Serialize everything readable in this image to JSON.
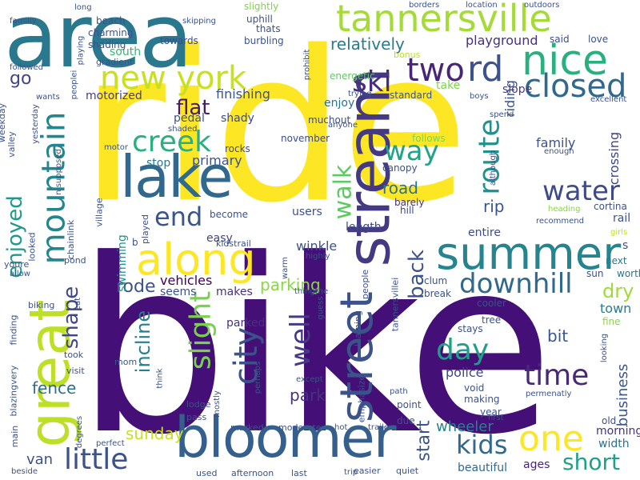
{
  "words": [
    {
      "text": "ride",
      "color": "#fde725"
    },
    {
      "text": "bike",
      "color": "#440f76"
    },
    {
      "text": "area",
      "color": "#2a788e"
    },
    {
      "text": "bloomer",
      "color": "#355f8d"
    },
    {
      "text": "stream",
      "color": "#443a83"
    },
    {
      "text": "lake",
      "color": "#31688e"
    },
    {
      "text": "tannersville",
      "color": "#a5db36"
    },
    {
      "text": "summer",
      "color": "#25848e"
    },
    {
      "text": "street",
      "color": "#3b528b"
    },
    {
      "text": "mountain",
      "color": "#25858e"
    },
    {
      "text": "great",
      "color": "#bddf26"
    },
    {
      "text": "along",
      "color": "#fde725"
    },
    {
      "text": "nice",
      "color": "#2ab07f"
    },
    {
      "text": "new york",
      "color": "#c8e020"
    },
    {
      "text": "two",
      "color": "#482576"
    },
    {
      "text": "closed",
      "color": "#31688e"
    },
    {
      "text": "route",
      "color": "#21918c"
    },
    {
      "text": "rd",
      "color": "#3b528b"
    },
    {
      "text": "ski",
      "color": "#472d7b"
    },
    {
      "text": "walk",
      "color": "#5ec962"
    },
    {
      "text": "way",
      "color": "#20a486"
    },
    {
      "text": "creek",
      "color": "#2ab07f"
    },
    {
      "text": "water",
      "color": "#3e4a89"
    },
    {
      "text": "end",
      "color": "#39568c"
    },
    {
      "text": "city",
      "color": "#3b528b"
    },
    {
      "text": "slight",
      "color": "#7ad151"
    },
    {
      "text": "well",
      "color": "#443b84"
    },
    {
      "text": "day",
      "color": "#1f9e89"
    },
    {
      "text": "downhill",
      "color": "#31688e"
    },
    {
      "text": "time",
      "color": "#482878"
    },
    {
      "text": "one",
      "color": "#fde725"
    },
    {
      "text": "kids",
      "color": "#31688e"
    },
    {
      "text": "little",
      "color": "#3b528b"
    },
    {
      "text": "short",
      "color": "#1fa188"
    },
    {
      "text": "enjoyed",
      "color": "#1f9a8a"
    },
    {
      "text": "shape",
      "color": "#3f4788"
    },
    {
      "text": "back",
      "color": "#3b528b"
    },
    {
      "text": "parking",
      "color": "#8bd646"
    },
    {
      "text": "relatively",
      "color": "#287c8e"
    },
    {
      "text": "road",
      "color": "#2c728e"
    },
    {
      "text": "rip",
      "color": "#39568c"
    },
    {
      "text": "finishing",
      "color": "#3b528b"
    },
    {
      "text": "flat",
      "color": "#48186a"
    },
    {
      "text": "rode",
      "color": "#3b528b"
    },
    {
      "text": "incline",
      "color": "#277f8e"
    },
    {
      "text": "fence",
      "color": "#2e6f8e"
    },
    {
      "text": "sunday",
      "color": "#c8e020"
    },
    {
      "text": "park",
      "color": "#46327e"
    },
    {
      "text": "business",
      "color": "#39568c"
    },
    {
      "text": "van",
      "color": "#3b528b"
    },
    {
      "text": "start",
      "color": "#39568c"
    },
    {
      "text": "wheeler",
      "color": "#25848e"
    },
    {
      "text": "police",
      "color": "#414487"
    },
    {
      "text": "bit",
      "color": "#39568c"
    },
    {
      "text": "dry",
      "color": "#a0da39"
    },
    {
      "text": "go",
      "color": "#414487"
    },
    {
      "text": "playground",
      "color": "#46327e"
    },
    {
      "text": "primary",
      "color": "#3b528b"
    },
    {
      "text": "vehicles",
      "color": "#440154"
    },
    {
      "text": "winkle",
      "color": "#3b528b"
    },
    {
      "text": "swimming",
      "color": "#21918c"
    },
    {
      "text": "entire",
      "color": "#3e4a89"
    },
    {
      "text": "crossing",
      "color": "#414487"
    },
    {
      "text": "family",
      "color": "#3b528b"
    },
    {
      "text": "town",
      "color": "#287c8e"
    },
    {
      "text": "riding",
      "color": "#3b528b"
    },
    {
      "text": "beautiful",
      "color": "#31688e"
    },
    {
      "text": "ages",
      "color": "#482576"
    },
    {
      "text": "morning",
      "color": "#46327e"
    },
    {
      "text": "width",
      "color": "#2c728e"
    },
    {
      "text": "enjoy",
      "color": "#2c728e"
    },
    {
      "text": "take",
      "color": "#7fd34e"
    },
    {
      "text": "slope",
      "color": "#443a83"
    },
    {
      "text": "motorized",
      "color": "#443b84"
    },
    {
      "text": "south",
      "color": "#35b779"
    },
    {
      "text": "users",
      "color": "#3b528b"
    },
    {
      "text": "length",
      "color": "#3e4a89"
    },
    {
      "text": "stop",
      "color": "#2a788e"
    },
    {
      "text": "easy",
      "color": "#414487"
    },
    {
      "text": "makes",
      "color": "#46327e"
    },
    {
      "text": "seems",
      "color": "#3b528b"
    },
    {
      "text": "parked",
      "color": "#46327e"
    },
    {
      "text": "pedal",
      "color": "#3b528b"
    },
    {
      "text": "shady",
      "color": "#3e4a89"
    },
    {
      "text": "rocks",
      "color": "#3e4a89"
    },
    {
      "text": "become",
      "color": "#3b528b"
    },
    {
      "text": "november",
      "color": "#3e4a89"
    },
    {
      "text": "muchout",
      "color": "#3e4a89"
    },
    {
      "text": "canopy",
      "color": "#3b528b"
    },
    {
      "text": "barely",
      "color": "#46327e"
    },
    {
      "text": "hill",
      "color": "#3e4a89"
    },
    {
      "text": "follows",
      "color": "#7fd34e"
    },
    {
      "text": "energetic",
      "color": "#5ec962"
    },
    {
      "text": "standard",
      "color": "#3b528b"
    },
    {
      "text": "beach",
      "color": "#3b528b"
    },
    {
      "text": "charming",
      "color": "#3b528b"
    },
    {
      "text": "shading",
      "color": "#3b528b"
    },
    {
      "text": "towards",
      "color": "#3e4a89"
    },
    {
      "text": "uphill",
      "color": "#3b528b"
    },
    {
      "text": "thats",
      "color": "#3b528b"
    },
    {
      "text": "burbling",
      "color": "#3b528b"
    },
    {
      "text": "slightly",
      "color": "#7fd34e"
    },
    {
      "text": "said",
      "color": "#3e4a89"
    },
    {
      "text": "love",
      "color": "#3b528b"
    },
    {
      "text": "bonus",
      "color": "#bddf26"
    },
    {
      "text": "excellent",
      "color": "#3b528b"
    },
    {
      "text": "cooler",
      "color": "#3b528b"
    },
    {
      "text": "stays",
      "color": "#3b528b"
    },
    {
      "text": "tree",
      "color": "#3b528b"
    },
    {
      "text": "fine",
      "color": "#8bd646"
    },
    {
      "text": "next",
      "color": "#2a788e"
    },
    {
      "text": "worth",
      "color": "#2c728e"
    },
    {
      "text": "sun",
      "color": "#3b528b"
    },
    {
      "text": "cortina",
      "color": "#3b528b"
    },
    {
      "text": "rail",
      "color": "#3b528b"
    },
    {
      "text": "girls",
      "color": "#bddf26"
    },
    {
      "text": "recommend",
      "color": "#3b528b"
    },
    {
      "text": "heading",
      "color": "#8bd646"
    },
    {
      "text": "clum",
      "color": "#3b528b"
    },
    {
      "text": "break",
      "color": "#3b528b"
    },
    {
      "text": "guess",
      "color": "#3b528b"
    },
    {
      "text": "learning",
      "color": "#3b528b"
    },
    {
      "text": "void",
      "color": "#3b528b"
    },
    {
      "text": "making",
      "color": "#3b528b"
    },
    {
      "text": "year",
      "color": "#3b528b"
    },
    {
      "text": "point",
      "color": "#3b528b"
    },
    {
      "text": "due",
      "color": "#3b528b"
    },
    {
      "text": "quiet",
      "color": "#3b528b"
    },
    {
      "text": "easier",
      "color": "#3b528b"
    },
    {
      "text": "last",
      "color": "#3b528b"
    },
    {
      "text": "afternoon",
      "color": "#3b528b"
    },
    {
      "text": "used",
      "color": "#3b528b"
    },
    {
      "text": "moderate",
      "color": "#3b528b"
    },
    {
      "text": "marked",
      "color": "#3b528b"
    },
    {
      "text": "pass",
      "color": "#3b528b"
    },
    {
      "text": "lodge",
      "color": "#3b528b"
    },
    {
      "text": "mom",
      "color": "#3b528b"
    },
    {
      "text": "think",
      "color": "#3b528b"
    },
    {
      "text": "visit",
      "color": "#3b528b"
    },
    {
      "text": "took",
      "color": "#3b528b"
    },
    {
      "text": "finding",
      "color": "#3b528b"
    },
    {
      "text": "biking",
      "color": "#3b528b"
    },
    {
      "text": "pond",
      "color": "#3b528b"
    },
    {
      "text": "allow",
      "color": "#3b528b"
    },
    {
      "text": "youre",
      "color": "#3b528b"
    },
    {
      "text": "looked",
      "color": "#3b528b"
    },
    {
      "text": "chainlink",
      "color": "#3b528b"
    },
    {
      "text": "village",
      "color": "#3b528b"
    },
    {
      "text": "played",
      "color": "#3b528b"
    },
    {
      "text": "kidstrail",
      "color": "#3b528b"
    },
    {
      "text": "valley",
      "color": "#3b528b"
    },
    {
      "text": "weekday",
      "color": "#3b528b"
    },
    {
      "text": "gradient",
      "color": "#3b528b"
    },
    {
      "text": "familiy",
      "color": "#3b528b"
    },
    {
      "text": "long",
      "color": "#3b528b"
    },
    {
      "text": "skipping",
      "color": "#3b528b"
    },
    {
      "text": "borders",
      "color": "#3b528b"
    },
    {
      "text": "location",
      "color": "#3b528b"
    },
    {
      "text": "outdoors",
      "color": "#3b528b"
    },
    {
      "text": "followed",
      "color": "#3b528b"
    },
    {
      "text": "wants",
      "color": "#3b528b"
    },
    {
      "text": "peoplei",
      "color": "#3b528b"
    },
    {
      "text": "b",
      "color": "#3b528b"
    },
    {
      "text": "blazingvery",
      "color": "#3b528b"
    },
    {
      "text": "main",
      "color": "#3b528b"
    },
    {
      "text": "beside",
      "color": "#3b528b"
    },
    {
      "text": "degrees",
      "color": "#3b528b"
    },
    {
      "text": "perfect",
      "color": "#3b528b"
    },
    {
      "text": "hot",
      "color": "#3b528b"
    },
    {
      "text": "trip",
      "color": "#3b528b"
    },
    {
      "text": "trailer",
      "color": "#3b528b"
    },
    {
      "text": "emphasize",
      "color": "#3b528b"
    },
    {
      "text": "path",
      "color": "#3b528b"
    },
    {
      "text": "except",
      "color": "#3b528b"
    },
    {
      "text": "perhaps",
      "color": "#3b528b"
    },
    {
      "text": "mostly",
      "color": "#3b528b"
    },
    {
      "text": "tannersvillei",
      "color": "#3b528b"
    },
    {
      "text": "people",
      "color": "#3b528b"
    },
    {
      "text": "thingthe",
      "color": "#3b528b"
    },
    {
      "text": "highly",
      "color": "#3b528b"
    },
    {
      "text": "warm",
      "color": "#3b528b"
    },
    {
      "text": "first",
      "color": "#3b528b"
    },
    {
      "text": "permenatly",
      "color": "#3b528b"
    },
    {
      "text": "old",
      "color": "#3b528b"
    },
    {
      "text": "looking",
      "color": "#3b528b"
    },
    {
      "text": "eat",
      "color": "#3b528b"
    },
    {
      "text": "boys",
      "color": "#3b528b"
    },
    {
      "text": "spend",
      "color": "#3b528b"
    },
    {
      "text": "although",
      "color": "#3b528b"
    },
    {
      "text": "enough",
      "color": "#3b528b"
    },
    {
      "text": "anyone",
      "color": "#3b528b"
    },
    {
      "text": "trying",
      "color": "#3b528b"
    },
    {
      "text": "prohibit",
      "color": "#3b528b"
    },
    {
      "text": "yesterday",
      "color": "#3b528b"
    },
    {
      "text": "playing",
      "color": "#3b528b"
    },
    {
      "text": "shaded",
      "color": "#3b528b"
    },
    {
      "text": "motor",
      "color": "#3b528b"
    },
    {
      "text": "n supposed",
      "color": "#3b528b"
    },
    {
      "text": "s",
      "color": "#3b528b"
    }
  ]
}
